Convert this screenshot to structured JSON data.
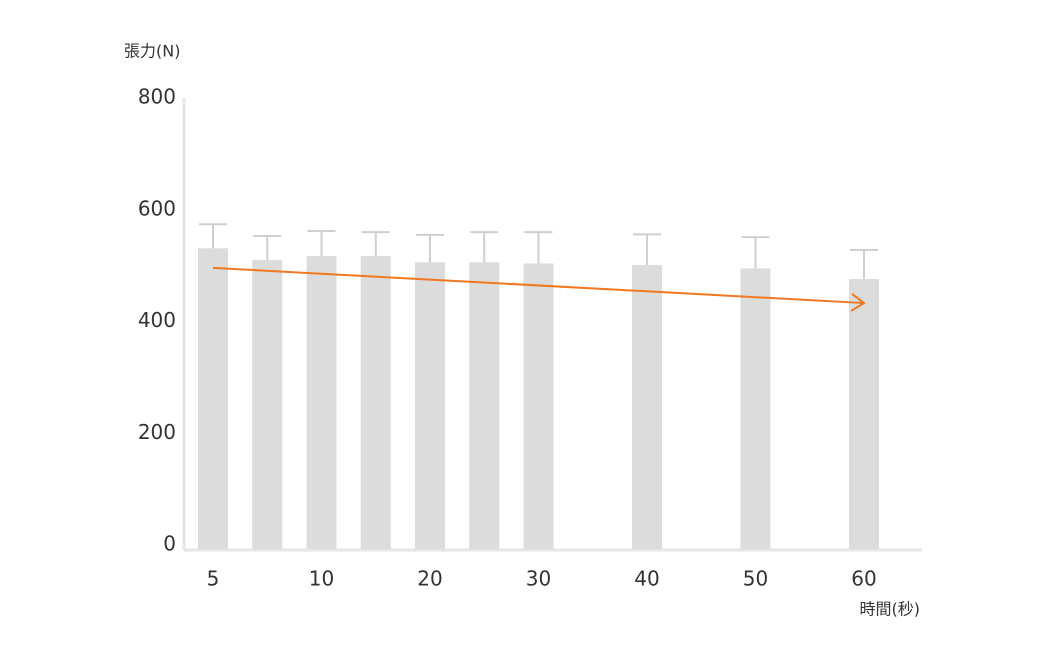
{
  "chart_data": {
    "type": "bar",
    "y_label": "張力(N)",
    "x_label": "時間(秒)",
    "categories": [
      "5",
      null,
      "10",
      null,
      "20",
      null,
      "30",
      null,
      "40",
      null,
      "50",
      null,
      "60"
    ],
    "values": [
      531,
      510,
      517,
      517,
      506,
      506,
      504,
      null,
      501,
      null,
      495,
      null,
      476
    ],
    "errors": [
      43,
      43,
      45,
      43,
      49,
      54,
      56,
      null,
      55,
      null,
      56,
      null,
      52
    ],
    "color": "#dcdcdc",
    "error_color": "#cfcfcf",
    "ylim": [
      0,
      800
    ],
    "yticks": [
      0,
      200,
      400,
      600,
      800
    ],
    "trend_line": {
      "color": "#f07820",
      "values": [
        496,
        433
      ]
    }
  }
}
